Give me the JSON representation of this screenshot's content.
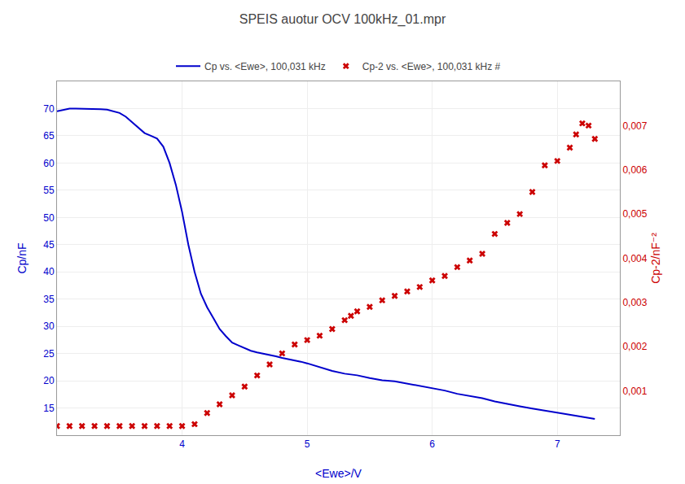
{
  "chart_data": {
    "type": "line",
    "title": "SPEIS auotur OCV 100kHz_01.mpr",
    "xlabel": "<Ewe>/V",
    "ylabel": "Cp/nF",
    "y2label": "Cp-2/nF⁻²",
    "xlim": [
      3.0,
      7.5
    ],
    "xticks": [
      4,
      5,
      6,
      7
    ],
    "ylim": [
      10,
      75
    ],
    "yticks": [
      15,
      20,
      25,
      30,
      35,
      40,
      45,
      50,
      55,
      60,
      65,
      70
    ],
    "y2lim": [
      0,
      0.008
    ],
    "y2ticks": [
      {
        "value": 0.001,
        "label": "0,001"
      },
      {
        "value": 0.002,
        "label": "0,002"
      },
      {
        "value": 0.003,
        "label": "0,003"
      },
      {
        "value": 0.004,
        "label": "0,004"
      },
      {
        "value": 0.005,
        "label": "0,005"
      },
      {
        "value": 0.006,
        "label": "0,006"
      },
      {
        "value": 0.007,
        "label": "0,007"
      }
    ],
    "grid": true,
    "legend": "upper center",
    "series": [
      {
        "name": "Cp vs. <Ewe>, 100,031 kHz",
        "type": "line",
        "line_style": "solid",
        "color": "#0000cc",
        "x": [
          3.0,
          3.05,
          3.1,
          3.15,
          3.2,
          3.25,
          3.3,
          3.35,
          3.4,
          3.45,
          3.5,
          3.55,
          3.6,
          3.65,
          3.7,
          3.75,
          3.8,
          3.85,
          3.9,
          3.95,
          4.0,
          4.05,
          4.1,
          4.15,
          4.2,
          4.25,
          4.3,
          4.35,
          4.4,
          4.45,
          4.5,
          4.55,
          4.6,
          4.65,
          4.7,
          4.75,
          4.8,
          4.85,
          4.9,
          4.95,
          5.0,
          5.1,
          5.2,
          5.3,
          5.4,
          5.5,
          5.6,
          5.7,
          5.8,
          5.9,
          6.0,
          6.1,
          6.2,
          6.3,
          6.4,
          6.5,
          6.6,
          6.7,
          6.8,
          6.9,
          7.0,
          7.1,
          7.2,
          7.3
        ],
        "values": [
          69.5,
          69.8,
          70.0,
          70.0,
          70.0,
          70.0,
          70.0,
          69.9,
          69.8,
          69.5,
          69.2,
          68.5,
          67.5,
          66.5,
          65.5,
          65.0,
          64.5,
          63.0,
          60.0,
          56.0,
          51.0,
          45.0,
          40.0,
          36.0,
          33.5,
          31.5,
          29.5,
          28.2,
          27.0,
          26.5,
          26.0,
          25.5,
          25.2,
          25.0,
          24.8,
          24.5,
          24.2,
          24.0,
          23.8,
          23.5,
          23.2,
          22.5,
          21.8,
          21.3,
          21.0,
          20.5,
          20.1,
          19.9,
          19.5,
          19.1,
          18.7,
          18.2,
          17.6,
          17.2,
          16.8,
          16.2,
          15.7,
          15.3,
          14.9,
          14.5,
          14.1,
          13.7,
          13.3,
          13.0
        ]
      },
      {
        "name": "Cp-2 vs. <Ewe>, 100,031 kHz #",
        "type": "scatter",
        "marker": "x",
        "color": "#cc0000",
        "axis": "y2",
        "x": [
          3.0,
          3.1,
          3.2,
          3.3,
          3.4,
          3.5,
          3.6,
          3.7,
          3.8,
          3.9,
          4.0,
          4.1,
          4.2,
          4.3,
          4.4,
          4.5,
          4.6,
          4.7,
          4.8,
          4.9,
          5.0,
          5.1,
          5.2,
          5.3,
          5.35,
          5.4,
          5.5,
          5.6,
          5.7,
          5.8,
          5.9,
          6.0,
          6.1,
          6.2,
          6.3,
          6.4,
          6.5,
          6.6,
          6.7,
          6.8,
          6.9,
          7.0,
          7.1,
          7.15,
          7.2,
          7.25,
          7.3
        ],
        "values": [
          0.000207,
          0.000207,
          0.000207,
          0.000207,
          0.000207,
          0.000207,
          0.000207,
          0.000207,
          0.000207,
          0.000207,
          0.000207,
          0.00025,
          0.0005,
          0.0007,
          0.0009,
          0.0011,
          0.00135,
          0.0016,
          0.00185,
          0.00205,
          0.00215,
          0.00225,
          0.0024,
          0.0026,
          0.0027,
          0.0028,
          0.0029,
          0.00305,
          0.00315,
          0.00325,
          0.00335,
          0.0035,
          0.0036,
          0.0038,
          0.00395,
          0.0041,
          0.00455,
          0.0048,
          0.005,
          0.0055,
          0.0061,
          0.0062,
          0.0065,
          0.0068,
          0.00705,
          0.007,
          0.0067
        ]
      }
    ]
  }
}
